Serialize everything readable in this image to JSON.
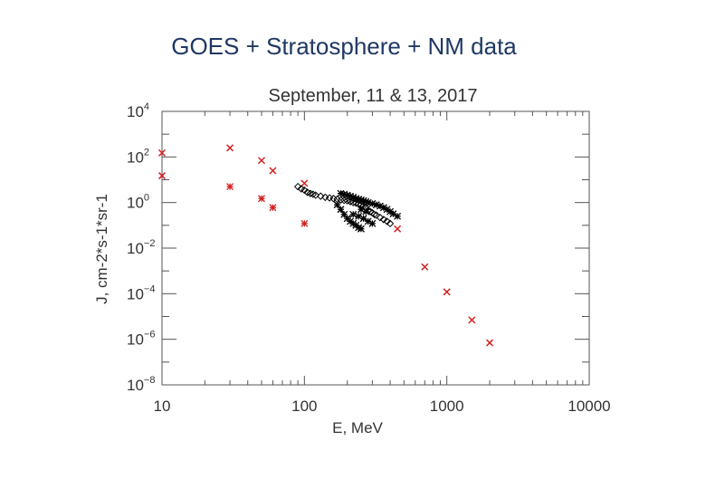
{
  "slide_title": "GOES + Stratosphere + NM  data",
  "chart_data": {
    "type": "scatter",
    "title": "September,  11 & 13, 2017",
    "xlabel": "E,  MeV",
    "ylabel": "J, cm-2*s-1*sr-1",
    "x_scale": "log",
    "y_scale": "log",
    "xlim": [
      10,
      10000
    ],
    "ylim": [
      1e-08,
      10000
    ],
    "x_ticks": [
      {
        "value": 10,
        "label": "10"
      },
      {
        "value": 100,
        "label": "100"
      },
      {
        "value": 1000,
        "label": "1000"
      },
      {
        "value": 10000,
        "label": "10000"
      }
    ],
    "y_ticks": [
      {
        "value": 10000,
        "base": "10",
        "exp": "4"
      },
      {
        "value": 100,
        "base": "10",
        "exp": "2"
      },
      {
        "value": 1,
        "base": "10",
        "exp": "0"
      },
      {
        "value": 0.01,
        "base": "10",
        "exp": "−2"
      },
      {
        "value": 0.0001,
        "base": "10",
        "exp": "−4"
      },
      {
        "value": 1e-06,
        "base": "10",
        "exp": "−6"
      },
      {
        "value": 1e-08,
        "base": "10",
        "exp": "−8"
      }
    ],
    "series": [
      {
        "marker": "x",
        "color": "#d42020",
        "points": [
          [
            10,
            150
          ],
          [
            10,
            15
          ],
          [
            30,
            250
          ],
          [
            50,
            70
          ],
          [
            60,
            25
          ],
          [
            100,
            7
          ],
          [
            450,
            0.07
          ],
          [
            700,
            0.0015
          ],
          [
            1000,
            0.00012
          ],
          [
            1500,
            7e-06
          ],
          [
            2000,
            7e-07
          ]
        ]
      },
      {
        "marker": "asterisk",
        "color": "#d42020",
        "points": [
          [
            30,
            5
          ],
          [
            50,
            1.5
          ],
          [
            60,
            0.6
          ],
          [
            100,
            0.12
          ]
        ]
      },
      {
        "marker": "diamond",
        "color": "#000000",
        "points": [
          [
            90,
            5
          ],
          [
            95,
            4
          ],
          [
            100,
            3.5
          ],
          [
            105,
            2.8
          ],
          [
            110,
            2.5
          ],
          [
            115,
            2.3
          ],
          [
            120,
            2.1
          ],
          [
            130,
            1.9
          ],
          [
            140,
            1.7
          ],
          [
            150,
            1.6
          ],
          [
            160,
            1.5
          ],
          [
            170,
            1.4
          ],
          [
            180,
            1.3
          ],
          [
            190,
            1.25
          ],
          [
            200,
            1.2
          ],
          [
            210,
            1.1
          ],
          [
            220,
            1.0
          ],
          [
            230,
            0.95
          ],
          [
            240,
            0.85
          ],
          [
            250,
            0.8
          ],
          [
            260,
            0.7
          ],
          [
            270,
            0.6
          ],
          [
            280,
            0.45
          ],
          [
            290,
            0.4
          ],
          [
            300,
            0.35
          ],
          [
            310,
            0.3
          ],
          [
            320,
            0.28
          ],
          [
            340,
            0.22
          ],
          [
            360,
            0.18
          ],
          [
            380,
            0.15
          ],
          [
            400,
            0.12
          ]
        ]
      },
      {
        "marker": "asterisk",
        "color": "#000000",
        "points": [
          [
            180,
            2.5
          ],
          [
            190,
            2.3
          ],
          [
            200,
            2.1
          ],
          [
            210,
            1.9
          ],
          [
            220,
            1.7
          ],
          [
            230,
            1.5
          ],
          [
            240,
            1.4
          ],
          [
            250,
            1.3
          ],
          [
            260,
            1.2
          ],
          [
            270,
            1.1
          ],
          [
            280,
            1.0
          ],
          [
            300,
            0.9
          ],
          [
            320,
            0.8
          ],
          [
            340,
            0.7
          ],
          [
            360,
            0.6
          ],
          [
            380,
            0.5
          ],
          [
            400,
            0.4
          ],
          [
            420,
            0.32
          ],
          [
            450,
            0.25
          ],
          [
            170,
            0.8
          ],
          [
            180,
            0.5
          ],
          [
            190,
            0.3
          ],
          [
            200,
            0.2
          ],
          [
            210,
            0.15
          ],
          [
            220,
            0.12
          ],
          [
            230,
            0.1
          ],
          [
            240,
            0.08
          ],
          [
            250,
            0.07
          ],
          [
            220,
            0.3
          ],
          [
            240,
            0.25
          ],
          [
            260,
            0.2
          ],
          [
            280,
            0.15
          ],
          [
            300,
            0.12
          ],
          [
            250,
            0.5
          ],
          [
            270,
            0.4
          ]
        ]
      }
    ]
  }
}
